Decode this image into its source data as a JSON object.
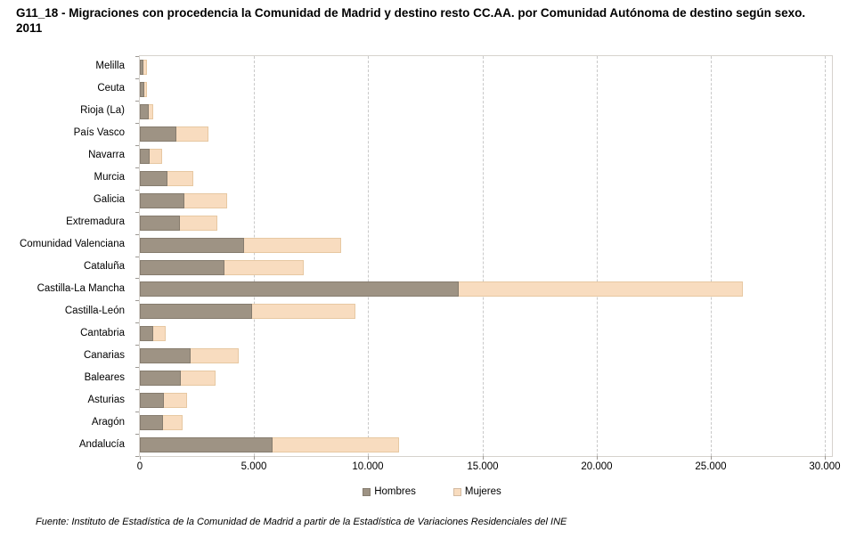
{
  "title": "G11_18 - Migraciones con procedencia la Comunidad de Madrid y destino resto CC.AA. por Comunidad Autónoma de destino según sexo. 2011",
  "footer": "Fuente: Instituto de Estadística de la Comunidad de Madrid a partir de la Estadística de Variaciones Residenciales del INE",
  "legend": {
    "items": [
      {
        "label": "Hombres",
        "color": "#9e9384"
      },
      {
        "label": "Mujeres",
        "color": "#f8dcbf"
      }
    ]
  },
  "chart_data": {
    "type": "bar",
    "orientation": "horizontal",
    "stacked": true,
    "title": "G11_18 - Migraciones con procedencia la Comunidad de Madrid y destino resto CC.AA. por Comunidad Autónoma de destino según sexo. 2011",
    "categories_top_to_bottom": [
      "Melilla",
      "Ceuta",
      "Rioja (La)",
      "País Vasco",
      "Navarra",
      "Murcia",
      "Galicia",
      "Extremadura",
      "Comunidad Valenciana",
      "Cataluña",
      "Castilla-La Mancha",
      "Castilla-León",
      "Cantabria",
      "Canarias",
      "Baleares",
      "Asturias",
      "Aragón",
      "Andalucía"
    ],
    "series": [
      {
        "name": "Hombres",
        "color": "#9e9384",
        "values": [
          170,
          210,
          400,
          1600,
          430,
          1210,
          1960,
          1760,
          4550,
          3690,
          13950,
          4910,
          590,
          2220,
          1800,
          1040,
          1000,
          5830
        ]
      },
      {
        "name": "Mujeres",
        "color": "#f8dcbf",
        "values": [
          160,
          120,
          180,
          1400,
          540,
          1140,
          1860,
          1630,
          4250,
          3470,
          12450,
          4540,
          550,
          2090,
          1530,
          1020,
          850,
          5540
        ]
      }
    ],
    "x_axis": {
      "min": 0,
      "max": 30000,
      "tick_interval": 5000,
      "tick_labels": [
        "0",
        "5.000",
        "10.000",
        "15.000",
        "20.000",
        "25.000",
        "30.000"
      ]
    },
    "y_axis_label": "",
    "x_axis_label": "",
    "grid": "vertical-dashed",
    "legend_position": "bottom",
    "source": "Fuente: Instituto de Estadística de la Comunidad de Madrid a partir de la Estadística de Variaciones Residenciales del INE"
  }
}
